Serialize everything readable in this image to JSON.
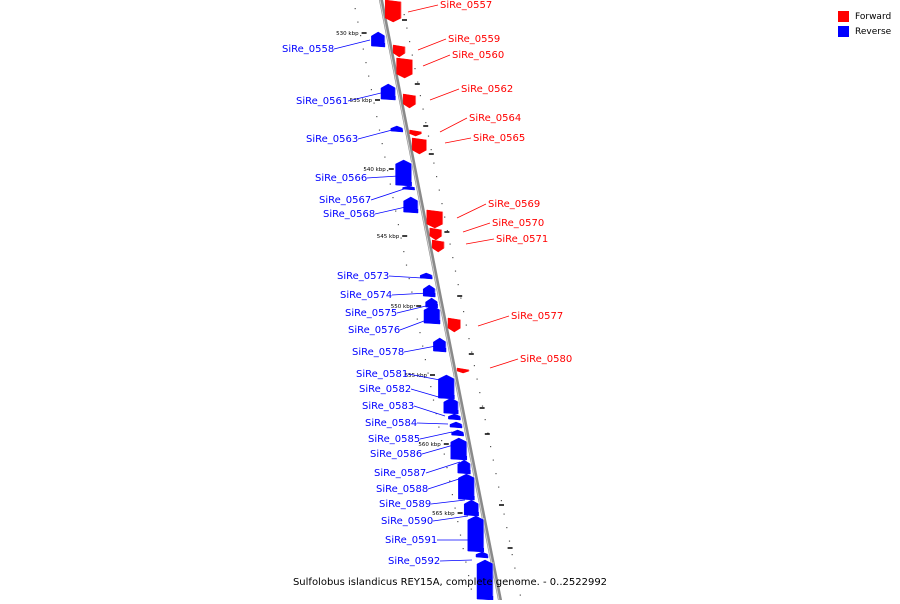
{
  "legend": {
    "forward_label": "Forward",
    "reverse_label": "Reverse",
    "forward_color": "#ff0000",
    "reverse_color": "#0000ff"
  },
  "footer_title": "Sulfolobus islandicus REY15A, complete genome. - 0..2522992",
  "ticks": [
    "530 kbp",
    "535 kbp",
    "540 kbp",
    "545 kbp",
    "550 kbp",
    "555 kbp",
    "560 kbp",
    "565 kbp"
  ],
  "genes": [
    {
      "name": "SiRe_0557",
      "strand": "forward"
    },
    {
      "name": "SiRe_0558",
      "strand": "reverse"
    },
    {
      "name": "SiRe_0559",
      "strand": "forward"
    },
    {
      "name": "SiRe_0560",
      "strand": "forward"
    },
    {
      "name": "SiRe_0561",
      "strand": "reverse"
    },
    {
      "name": "SiRe_0562",
      "strand": "forward"
    },
    {
      "name": "SiRe_0563",
      "strand": "reverse"
    },
    {
      "name": "SiRe_0564",
      "strand": "forward"
    },
    {
      "name": "SiRe_0565",
      "strand": "forward"
    },
    {
      "name": "SiRe_0566",
      "strand": "reverse"
    },
    {
      "name": "SiRe_0567",
      "strand": "reverse"
    },
    {
      "name": "SiRe_0568",
      "strand": "reverse"
    },
    {
      "name": "SiRe_0569",
      "strand": "forward"
    },
    {
      "name": "SiRe_0570",
      "strand": "forward"
    },
    {
      "name": "SiRe_0571",
      "strand": "forward"
    },
    {
      "name": "SiRe_0573",
      "strand": "reverse"
    },
    {
      "name": "SiRe_0574",
      "strand": "reverse"
    },
    {
      "name": "SiRe_0575",
      "strand": "reverse"
    },
    {
      "name": "SiRe_0576",
      "strand": "reverse"
    },
    {
      "name": "SiRe_0577",
      "strand": "forward"
    },
    {
      "name": "SiRe_0578",
      "strand": "reverse"
    },
    {
      "name": "SiRe_0580",
      "strand": "forward"
    },
    {
      "name": "SiRe_0581",
      "strand": "reverse"
    },
    {
      "name": "SiRe_0582",
      "strand": "reverse"
    },
    {
      "name": "SiRe_0583",
      "strand": "reverse"
    },
    {
      "name": "SiRe_0584",
      "strand": "reverse"
    },
    {
      "name": "SiRe_0585",
      "strand": "reverse"
    },
    {
      "name": "SiRe_0586",
      "strand": "reverse"
    },
    {
      "name": "SiRe_0587",
      "strand": "reverse"
    },
    {
      "name": "SiRe_0588",
      "strand": "reverse"
    },
    {
      "name": "SiRe_0589",
      "strand": "reverse"
    },
    {
      "name": "SiRe_0590",
      "strand": "reverse"
    },
    {
      "name": "SiRe_0591",
      "strand": "reverse"
    },
    {
      "name": "SiRe_0592",
      "strand": "reverse"
    }
  ]
}
